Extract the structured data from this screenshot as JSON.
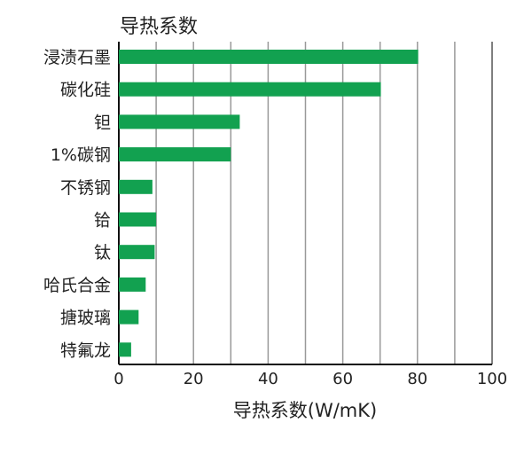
{
  "chart_data": {
    "type": "bar",
    "orientation": "horizontal",
    "title": "导热系数",
    "xlabel": "导热系数(W/mK)",
    "ylabel": "",
    "categories": [
      "浸渍石墨",
      "碳化硅",
      "钽",
      "1%碳钢",
      "不锈钢",
      "铪",
      "钛",
      "哈氏合金",
      "搪玻璃",
      "特氟龙"
    ],
    "values": [
      80.2,
      70.2,
      32.4,
      30,
      9.0,
      10,
      9.6,
      7.2,
      5.3,
      3.3
    ],
    "xlim": [
      0,
      100
    ],
    "xticks": [
      0,
      20,
      40,
      60,
      80,
      100
    ],
    "grid": "vertical every 10",
    "bar_color": "#12a150"
  }
}
